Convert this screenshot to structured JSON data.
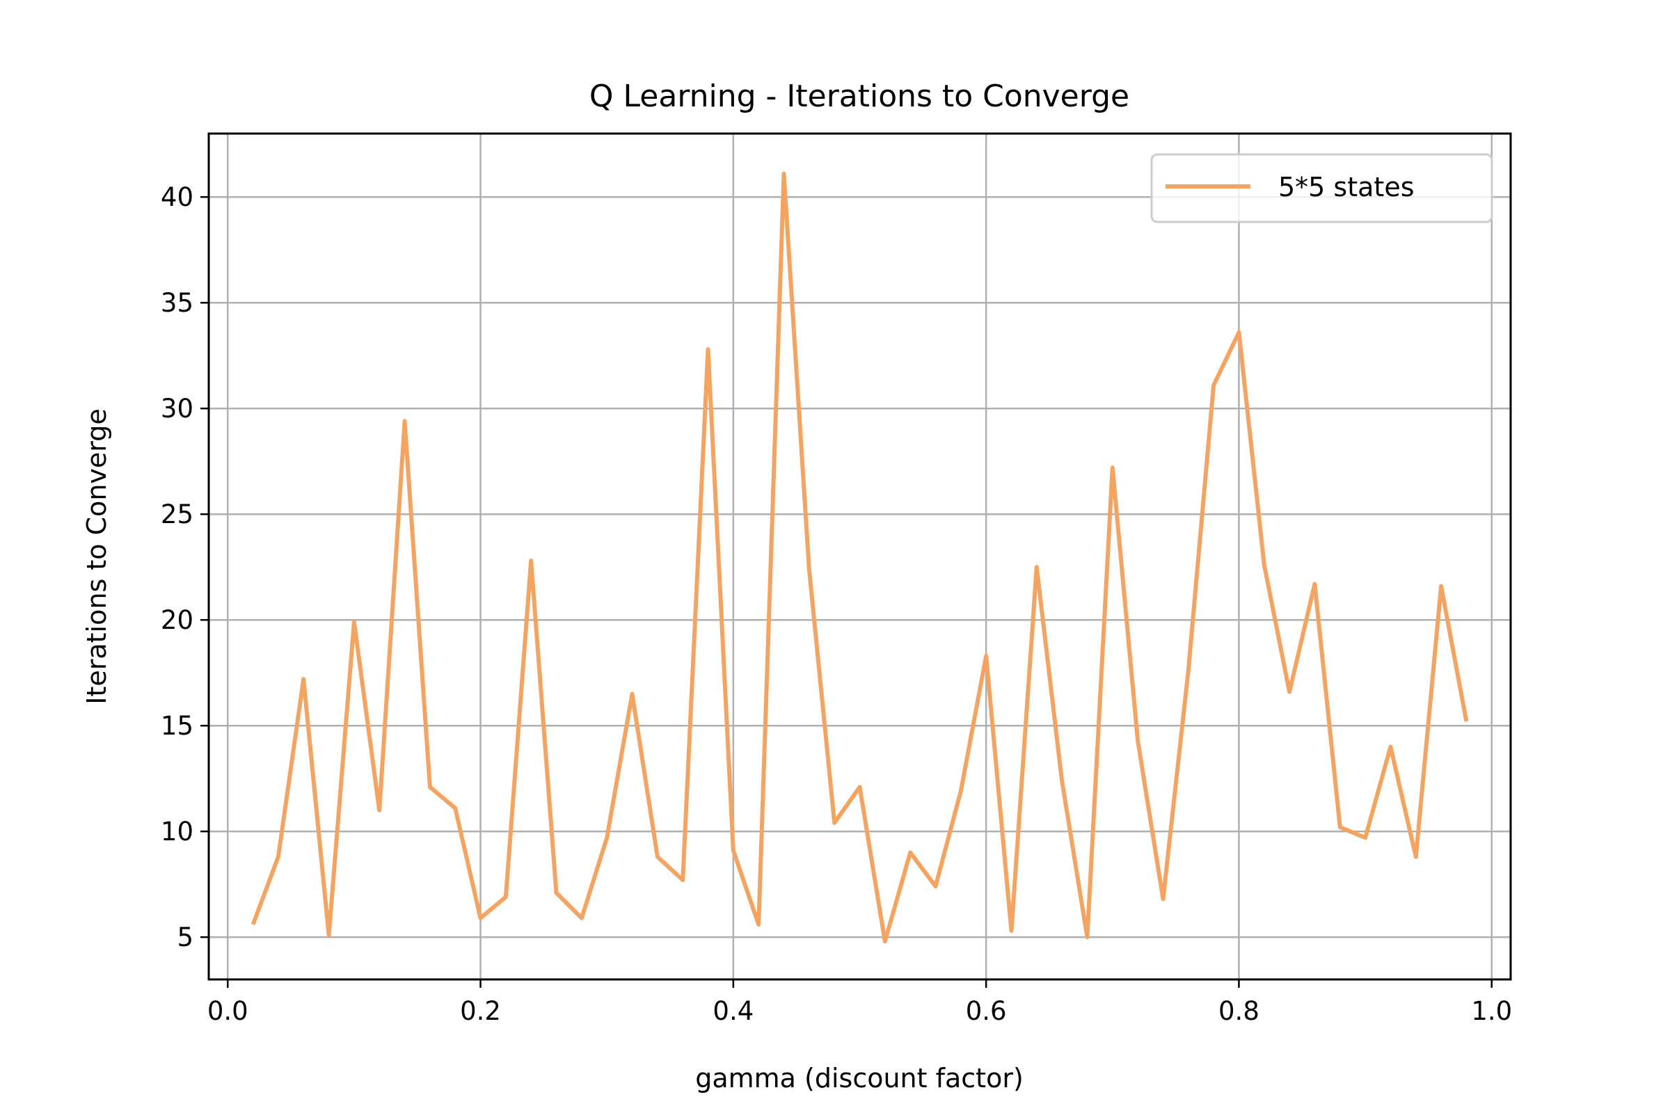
{
  "chart_data": {
    "type": "line",
    "title": "Q Learning - Iterations to Converge",
    "xlabel": "gamma (discount factor)",
    "ylabel": "Iterations to Converge",
    "xlim": [
      -0.015,
      1.015
    ],
    "ylim": [
      3.0,
      43.0
    ],
    "xticks": [
      0.0,
      0.2,
      0.4,
      0.6,
      0.8,
      1.0
    ],
    "xtick_labels": [
      "0.0",
      "0.2",
      "0.4",
      "0.6",
      "0.8",
      "1.0"
    ],
    "yticks": [
      5,
      10,
      15,
      20,
      25,
      30,
      35,
      40
    ],
    "ytick_labels": [
      "5",
      "10",
      "15",
      "20",
      "25",
      "30",
      "35",
      "40"
    ],
    "grid": true,
    "legend_position": "top-right",
    "series": [
      {
        "name": "5*5 states",
        "color": "#f4a460",
        "x": [
          0.02,
          0.04,
          0.06,
          0.08,
          0.1,
          0.12,
          0.14,
          0.16,
          0.18,
          0.2,
          0.22,
          0.24,
          0.26,
          0.28,
          0.3,
          0.32,
          0.34,
          0.36,
          0.38,
          0.4,
          0.42,
          0.44,
          0.46,
          0.48,
          0.5,
          0.52,
          0.54,
          0.56,
          0.58,
          0.6,
          0.62,
          0.64,
          0.66,
          0.68,
          0.7,
          0.72,
          0.74,
          0.76,
          0.78,
          0.8,
          0.82,
          0.84,
          0.86,
          0.88,
          0.9,
          0.92,
          0.94,
          0.96,
          0.98
        ],
        "y": [
          5.6,
          8.8,
          17.2,
          5.1,
          19.9,
          11.0,
          29.4,
          12.1,
          11.1,
          5.9,
          6.9,
          22.8,
          7.1,
          5.9,
          9.7,
          16.5,
          8.8,
          7.7,
          32.8,
          9.1,
          5.6,
          41.1,
          22.4,
          10.4,
          12.1,
          4.8,
          9.0,
          7.4,
          11.9,
          18.3,
          5.3,
          22.5,
          12.4,
          5.0,
          27.2,
          14.3,
          6.8,
          17.6,
          31.1,
          33.6,
          22.6,
          16.6,
          21.7,
          10.2,
          9.7,
          14.0,
          8.8,
          21.6,
          15.2
        ]
      }
    ]
  }
}
